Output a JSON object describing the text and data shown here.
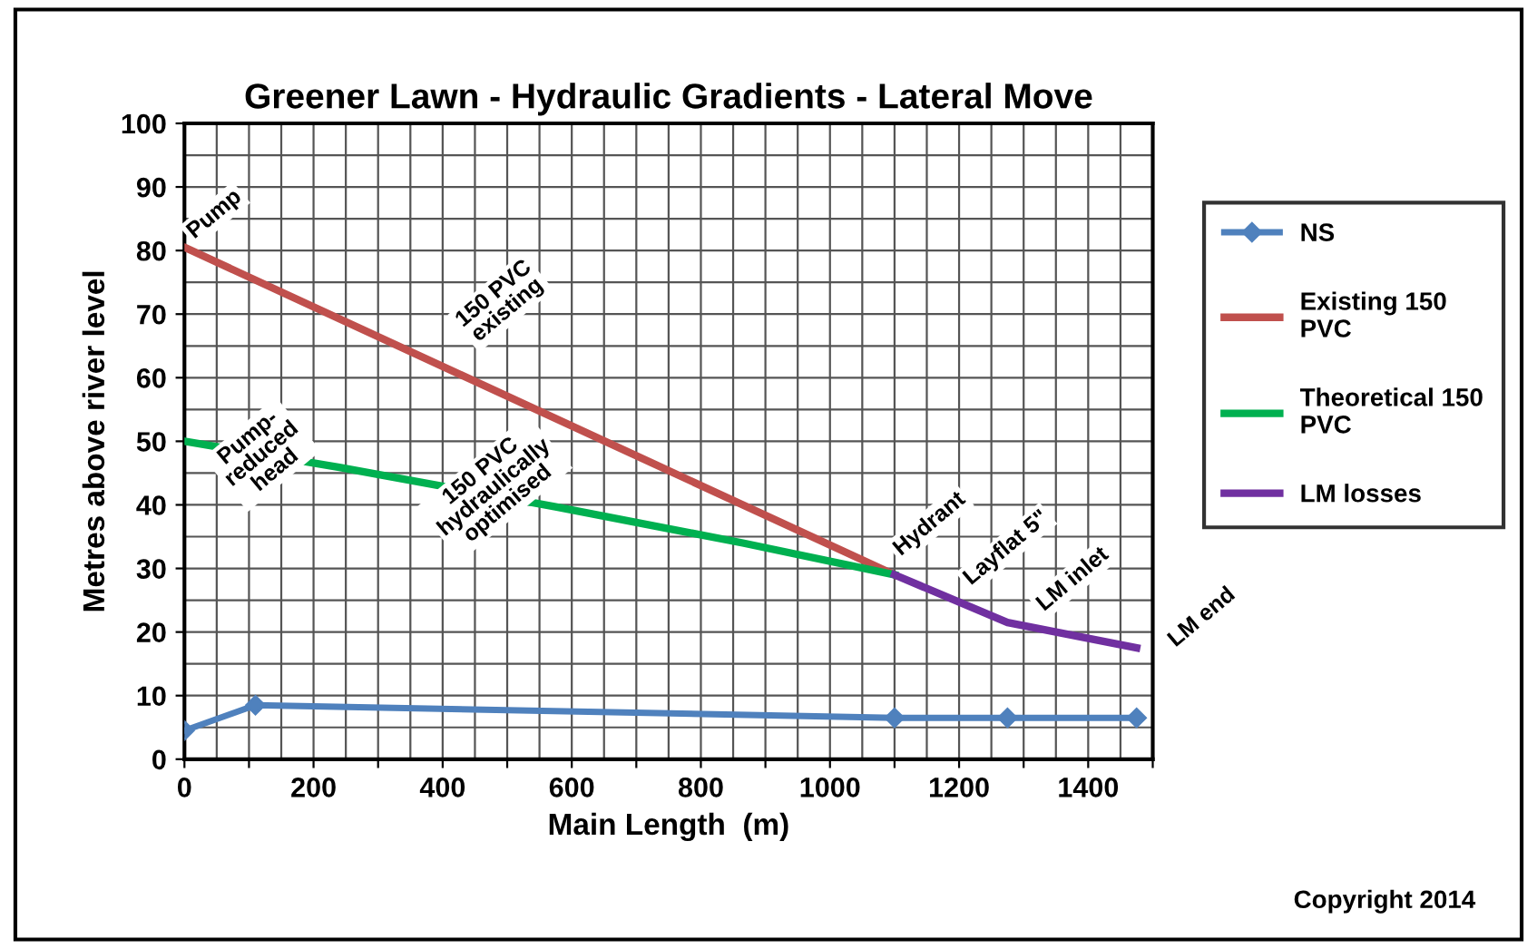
{
  "chart_data": {
    "type": "line",
    "title": "Greener Lawn - Hydraulic Gradients - Lateral Move",
    "xlabel": "Main Length  (m)",
    "ylabel": "Metres above river level",
    "series": [
      {
        "name": "NS",
        "color": "#4f81bd",
        "marker": "diamond",
        "x": [
          0,
          110,
          1100,
          1275,
          1475
        ],
        "values": [
          4.5,
          8.5,
          6.5,
          6.5,
          6.5
        ]
      },
      {
        "name": "Existing 150\nPVC",
        "color": "#c0504d",
        "x": [
          0,
          1100
        ],
        "values": [
          80.5,
          29
        ]
      },
      {
        "name": "Theoretical 150\nPVC",
        "color": "#00b050",
        "x": [
          0,
          240,
          575,
          865,
          1100
        ],
        "values": [
          50,
          45.9,
          39.7,
          34,
          29
        ]
      },
      {
        "name": "LM losses",
        "color": "#7030a0",
        "x": [
          1100,
          1275,
          1300,
          1475
        ],
        "values": [
          29,
          21.5,
          21,
          17.5
        ]
      }
    ],
    "xlim": [
      0,
      1500
    ],
    "ylim": [
      0,
      100
    ],
    "xticks": [
      0,
      {
        "value": 100,
        "label": null
      },
      200,
      {
        "value": 300,
        "label": null
      },
      400,
      {
        "value": 500,
        "label": null
      },
      600,
      {
        "value": 700,
        "label": null
      },
      800,
      {
        "value": 900,
        "label": null
      },
      1000,
      {
        "value": 1100,
        "label": null
      },
      1200,
      {
        "value": 1300,
        "label": null
      },
      1400,
      {
        "value": 1500,
        "label": null
      }
    ],
    "yticks": [
      0,
      10,
      20,
      30,
      40,
      50,
      60,
      70,
      80,
      90,
      100
    ],
    "grid": true,
    "legend": "right",
    "annotations": [
      {
        "text": "Pump",
        "x": 0,
        "y": 80.5
      },
      {
        "text": "150 PVC\nexisting",
        "x": 490,
        "y": 57.6
      },
      {
        "text": "Pump-\nreduced\nhead",
        "x": 120,
        "y": 47.95
      },
      {
        "text": "150 PVC\nhydraulically\noptimised",
        "x": 480,
        "y": 41.5
      },
      {
        "text": "Hydrant",
        "x": 1100,
        "y": 29
      },
      {
        "text": "Layflat 5\"",
        "x": 1187.5,
        "y": 25.25
      },
      {
        "text": "LM inlet",
        "x": 1275,
        "y": 21.5
      },
      {
        "text": "LM end",
        "x": 1475,
        "y": 17.5
      },
      "Copyright 2014"
    ]
  }
}
